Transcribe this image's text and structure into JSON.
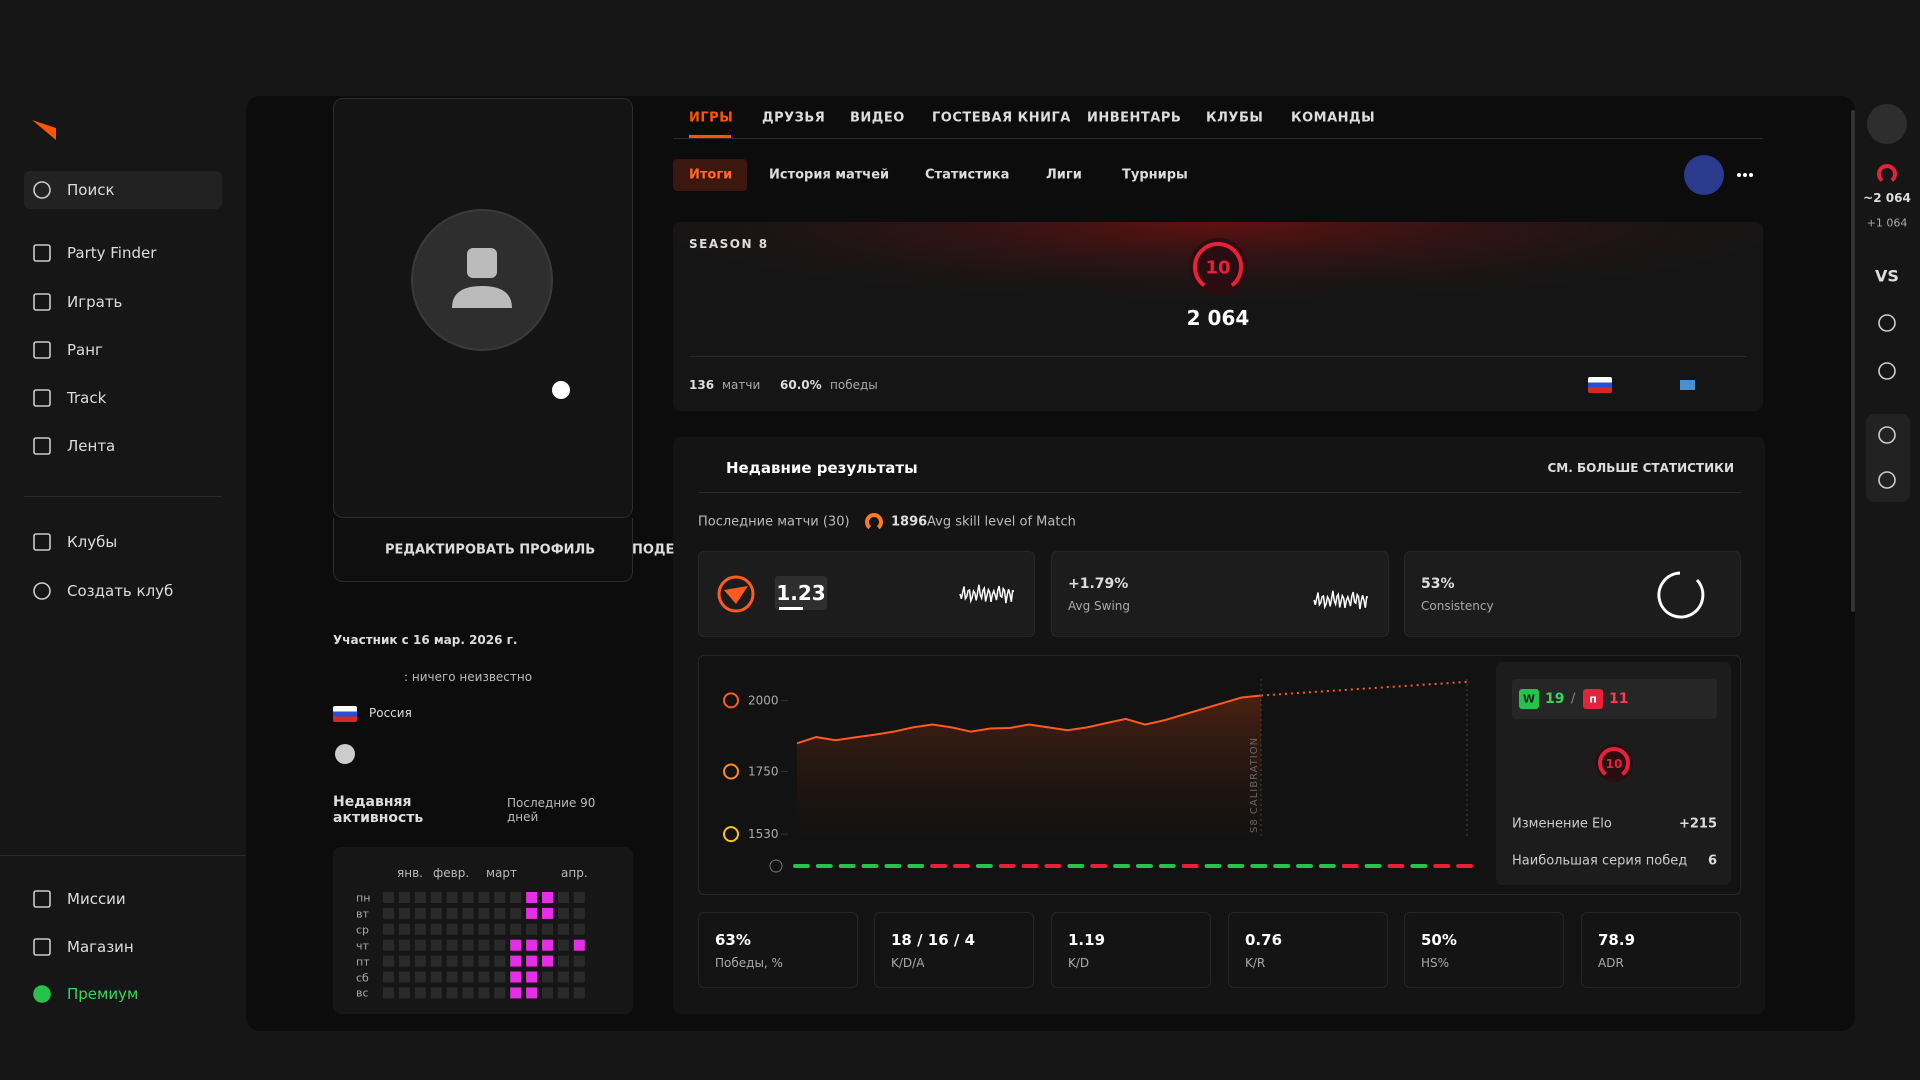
{
  "sidebar": {
    "items": [
      "Поиск",
      "Party Finder",
      "Играть",
      "Ранг",
      "Track",
      "Лента",
      "Клубы",
      "Создать клуб",
      "Миссии",
      "Магазин",
      "Премиум"
    ]
  },
  "tabs": [
    "ИГРЫ",
    "ДРУЗЬЯ",
    "ВИДЕО",
    "ГОСТЕВАЯ КНИГА",
    "ИНВЕНТАРЬ",
    "КЛУБЫ",
    "КОМАНДЫ"
  ],
  "subtabs": [
    "Итоги",
    "История матчей",
    "Статистика",
    "Лиги",
    "Турниры"
  ],
  "season": {
    "label": "SEASON 8",
    "level": "10",
    "elo": "2 064",
    "matches": "136",
    "matches_label": "матчи",
    "winrate": "60.0%",
    "winrate_label": "победы"
  },
  "profile": {
    "edit": "РЕДАКТИРОВАТЬ ПРОФИЛЬ",
    "share": "ПОДЕ",
    "member_since": "Участник с 16 мар. 2026 г.",
    "about": ": ничего неизвестно",
    "country": "Россия",
    "activity_title": "Недавняя активность",
    "activity_period": "Последние 90 дней",
    "months": [
      "янв.",
      "февр.",
      "март",
      "апр."
    ],
    "days": [
      "пн",
      "вт",
      "ср",
      "чт",
      "пт",
      "сб",
      "вс"
    ],
    "activity": [
      [
        0,
        0,
        0,
        0,
        0,
        0,
        0,
        0,
        0,
        1,
        1,
        0,
        0
      ],
      [
        0,
        0,
        0,
        0,
        0,
        0,
        0,
        0,
        0,
        1,
        1,
        0,
        0
      ],
      [
        0,
        0,
        0,
        0,
        0,
        0,
        0,
        0,
        0,
        0,
        0,
        0,
        0
      ],
      [
        0,
        0,
        0,
        0,
        0,
        0,
        0,
        0,
        1,
        1,
        1,
        0,
        1
      ],
      [
        0,
        0,
        0,
        0,
        0,
        0,
        0,
        0,
        1,
        1,
        1,
        0,
        0
      ],
      [
        0,
        0,
        0,
        0,
        0,
        0,
        0,
        0,
        1,
        1,
        0,
        0,
        0
      ],
      [
        0,
        0,
        0,
        0,
        0,
        0,
        0,
        0,
        1,
        1,
        0,
        0,
        0
      ]
    ]
  },
  "recent": {
    "title": "Недавние результаты",
    "more": "СМ. БОЛЬШЕ СТАТИСТИКИ",
    "subtitle": "Последние матчи (30)",
    "avg_skill": "1896",
    "avg_skill_label": "Avg skill level of Match",
    "rating": "1.23",
    "swing": "+1.79%",
    "swing_label": "Avg Swing",
    "consistency": "53%",
    "consistency_label": "Consistency",
    "wins_badge": "W",
    "wins": "19",
    "separator": "/",
    "losses_badge": "п",
    "losses": "11",
    "level": "10",
    "elo_change_label": "Изменение Elo",
    "elo_change": "+215",
    "streak_label": "Наибольшая серия побед",
    "streak": "6",
    "stats": [
      {
        "value": "63%",
        "label": "Победы, %"
      },
      {
        "value": "18 / 16 / 4",
        "label": "K/D/A"
      },
      {
        "value": "1.19",
        "label": "K/D"
      },
      {
        "value": "0.76",
        "label": "K/R"
      },
      {
        "value": "50%",
        "label": "HS%"
      },
      {
        "value": "78.9",
        "label": "ADR"
      }
    ]
  },
  "elo_chart": {
    "type": "line",
    "values": [
      1849,
      1871,
      1860,
      1870,
      1879,
      1890,
      1905,
      1915,
      1905,
      1890,
      1901,
      1903,
      1915,
      1905,
      1895,
      1905,
      1920,
      1935,
      1915,
      1930,
      1950,
      1970,
      1990,
      2010,
      2017
    ],
    "projection": 2065,
    "ylim": [
      1520,
      2075
    ],
    "yticks": [
      2000,
      1750,
      1530
    ],
    "annotation": "S8 CALIBRATION",
    "color": "#ff5a1f",
    "results": [
      1,
      1,
      1,
      1,
      1,
      1,
      0,
      0,
      1,
      0,
      0,
      0,
      1,
      0,
      1,
      1,
      1,
      0,
      1,
      1,
      1,
      1,
      1,
      1,
      0,
      1,
      0,
      1,
      0,
      0
    ]
  },
  "rail": {
    "elo": "~2 064",
    "diff": "+1 064",
    "vs": "VS"
  }
}
